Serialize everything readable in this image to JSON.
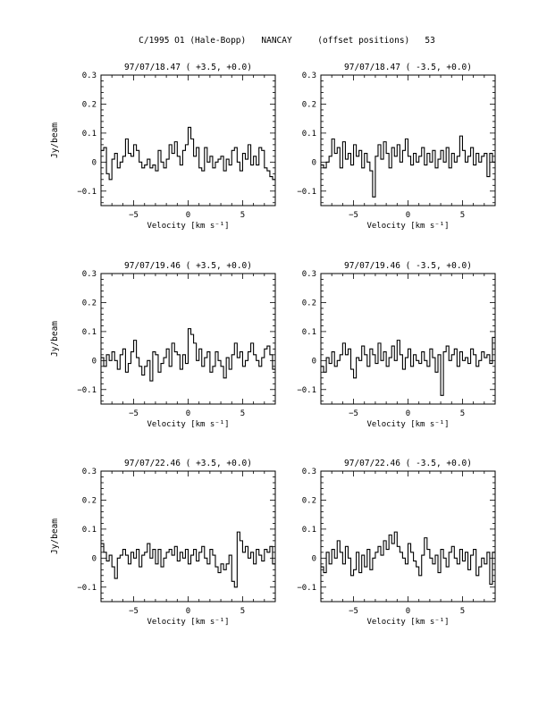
{
  "page_title": "C/1995 O1 (Hale-Bopp)   NANCAY     (offset positions)   53",
  "chart_data": [
    {
      "type": "line",
      "title": "97/07/18.47   ( +3.5, +0.0)",
      "xlabel": "Velocity [km s⁻¹]",
      "ylabel": "Jy/beam",
      "xlim": [
        -8,
        8
      ],
      "ylim": [
        -0.15,
        0.3
      ],
      "xticks": [
        -5,
        0,
        5
      ],
      "yticks": [
        -0.1,
        0,
        0.1,
        0.2,
        0.3
      ],
      "ytick_labels": [
        "−0.1",
        "0",
        "0.1",
        "0.2",
        "0.3"
      ],
      "x": [
        -8,
        -7.75,
        -7.5,
        -7.25,
        -7,
        -6.75,
        -6.5,
        -6.25,
        -6,
        -5.75,
        -5.5,
        -5.25,
        -5,
        -4.75,
        -4.5,
        -4.25,
        -4,
        -3.75,
        -3.5,
        -3.25,
        -3,
        -2.75,
        -2.5,
        -2.25,
        -2,
        -1.75,
        -1.5,
        -1.25,
        -1,
        -0.75,
        -0.5,
        -0.25,
        0,
        0.25,
        0.5,
        0.75,
        1,
        1.25,
        1.5,
        1.75,
        2,
        2.25,
        2.5,
        2.75,
        3,
        3.25,
        3.5,
        3.75,
        4,
        4.25,
        4.5,
        4.75,
        5,
        5.25,
        5.5,
        5.75,
        6,
        6.25,
        6.5,
        6.75,
        7,
        7.25,
        7.5,
        7.75
      ],
      "values": [
        0.04,
        0.05,
        -0.04,
        -0.06,
        0.01,
        0.03,
        -0.02,
        0.0,
        0.02,
        0.08,
        0.03,
        0.02,
        0.06,
        0.04,
        0.0,
        -0.02,
        -0.01,
        0.01,
        -0.02,
        -0.01,
        -0.03,
        0.04,
        0.0,
        -0.02,
        0.01,
        0.06,
        0.03,
        0.07,
        0.02,
        -0.01,
        0.04,
        0.06,
        0.12,
        0.08,
        0.02,
        0.05,
        -0.02,
        -0.03,
        0.05,
        0.0,
        0.02,
        -0.02,
        0.0,
        0.01,
        0.02,
        -0.03,
        0.01,
        -0.01,
        0.04,
        0.05,
        0.0,
        -0.03,
        0.03,
        0.01,
        0.06,
        -0.01,
        0.02,
        -0.01,
        0.05,
        0.04,
        -0.02,
        -0.03,
        -0.05,
        -0.06
      ]
    },
    {
      "type": "line",
      "title": "97/07/18.47   ( -3.5, +0.0)",
      "xlabel": "Velocity [km s⁻¹]",
      "ylabel": "",
      "xlim": [
        -8,
        8
      ],
      "ylim": [
        -0.15,
        0.3
      ],
      "xticks": [
        -5,
        0,
        5
      ],
      "yticks": [
        -0.1,
        0,
        0.1,
        0.2,
        0.3
      ],
      "ytick_labels": [
        "−0.1",
        "0",
        "0.1",
        "0.2",
        "0.3"
      ],
      "x": [
        -8,
        -7.75,
        -7.5,
        -7.25,
        -7,
        -6.75,
        -6.5,
        -6.25,
        -6,
        -5.75,
        -5.5,
        -5.25,
        -5,
        -4.75,
        -4.5,
        -4.25,
        -4,
        -3.75,
        -3.5,
        -3.25,
        -3,
        -2.75,
        -2.5,
        -2.25,
        -2,
        -1.75,
        -1.5,
        -1.25,
        -1,
        -0.75,
        -0.5,
        -0.25,
        0,
        0.25,
        0.5,
        0.75,
        1,
        1.25,
        1.5,
        1.75,
        2,
        2.25,
        2.5,
        2.75,
        3,
        3.25,
        3.5,
        3.75,
        4,
        4.25,
        4.5,
        4.75,
        5,
        5.25,
        5.5,
        5.75,
        6,
        6.25,
        6.5,
        6.75,
        7,
        7.25,
        7.5,
        7.75
      ],
      "values": [
        -0.01,
        -0.02,
        0.0,
        0.02,
        0.08,
        0.03,
        0.05,
        -0.02,
        0.07,
        0.01,
        0.03,
        -0.01,
        0.06,
        0.02,
        0.04,
        -0.02,
        0.03,
        0.0,
        -0.03,
        -0.12,
        0.02,
        0.06,
        0.01,
        0.07,
        0.03,
        -0.02,
        0.05,
        0.02,
        0.06,
        0.0,
        0.04,
        0.08,
        0.02,
        -0.01,
        0.03,
        0.0,
        0.02,
        0.05,
        -0.01,
        0.03,
        0.0,
        0.04,
        -0.02,
        0.01,
        0.04,
        0.0,
        0.05,
        -0.02,
        0.03,
        0.0,
        0.02,
        0.09,
        0.04,
        0.0,
        0.02,
        0.05,
        -0.01,
        0.03,
        0.0,
        0.02,
        0.03,
        -0.05,
        0.03,
        0.0
      ]
    },
    {
      "type": "line",
      "title": "97/07/19.46   ( +3.5, +0.0)",
      "xlabel": "Velocity [km s⁻¹]",
      "ylabel": "Jy/beam",
      "xlim": [
        -8,
        8
      ],
      "ylim": [
        -0.15,
        0.3
      ],
      "xticks": [
        -5,
        0,
        5
      ],
      "yticks": [
        -0.1,
        0,
        0.1,
        0.2,
        0.3
      ],
      "ytick_labels": [
        "−0.1",
        "0",
        "0.1",
        "0.2",
        "0.3"
      ],
      "x": [
        -8,
        -7.75,
        -7.5,
        -7.25,
        -7,
        -6.75,
        -6.5,
        -6.25,
        -6,
        -5.75,
        -5.5,
        -5.25,
        -5,
        -4.75,
        -4.5,
        -4.25,
        -4,
        -3.75,
        -3.5,
        -3.25,
        -3,
        -2.75,
        -2.5,
        -2.25,
        -2,
        -1.75,
        -1.5,
        -1.25,
        -1,
        -0.75,
        -0.5,
        -0.25,
        0,
        0.25,
        0.5,
        0.75,
        1,
        1.25,
        1.5,
        1.75,
        2,
        2.25,
        2.5,
        2.75,
        3,
        3.25,
        3.5,
        3.75,
        4,
        4.25,
        4.5,
        4.75,
        5,
        5.25,
        5.5,
        5.75,
        6,
        6.25,
        6.5,
        6.75,
        7,
        7.25,
        7.5,
        7.75
      ],
      "values": [
        0.01,
        -0.02,
        0.02,
        0.0,
        0.03,
        0.0,
        -0.03,
        0.02,
        0.04,
        -0.04,
        -0.01,
        0.03,
        0.07,
        0.01,
        -0.02,
        -0.05,
        -0.02,
        0.0,
        -0.07,
        0.03,
        0.02,
        -0.04,
        -0.01,
        0.01,
        0.04,
        -0.02,
        0.06,
        0.03,
        0.02,
        -0.03,
        0.02,
        -0.01,
        0.11,
        0.09,
        0.06,
        0.0,
        0.04,
        -0.02,
        0.01,
        0.03,
        -0.04,
        -0.02,
        0.03,
        0.0,
        -0.02,
        -0.06,
        0.01,
        -0.03,
        0.02,
        0.06,
        0.01,
        0.03,
        -0.02,
        0.0,
        0.03,
        0.06,
        0.02,
        0.0,
        -0.02,
        0.01,
        0.04,
        0.05,
        0.02,
        -0.03
      ]
    },
    {
      "type": "line",
      "title": "97/07/19.46   ( -3.5, +0.0)",
      "xlabel": "Velocity [km s⁻¹]",
      "ylabel": "",
      "xlim": [
        -8,
        8
      ],
      "ylim": [
        -0.15,
        0.3
      ],
      "xticks": [
        -5,
        0,
        5
      ],
      "yticks": [
        -0.1,
        0,
        0.1,
        0.2,
        0.3
      ],
      "ytick_labels": [
        "−0.1",
        "0",
        "0.1",
        "0.2",
        "0.3"
      ],
      "x": [
        -8,
        -7.75,
        -7.5,
        -7.25,
        -7,
        -6.75,
        -6.5,
        -6.25,
        -6,
        -5.75,
        -5.5,
        -5.25,
        -5,
        -4.75,
        -4.5,
        -4.25,
        -4,
        -3.75,
        -3.5,
        -3.25,
        -3,
        -2.75,
        -2.5,
        -2.25,
        -2,
        -1.75,
        -1.5,
        -1.25,
        -1,
        -0.75,
        -0.5,
        -0.25,
        0,
        0.25,
        0.5,
        0.75,
        1,
        1.25,
        1.5,
        1.75,
        2,
        2.25,
        2.5,
        2.75,
        3,
        3.25,
        3.5,
        3.75,
        4,
        4.25,
        4.5,
        4.75,
        5,
        5.25,
        5.5,
        5.75,
        6,
        6.25,
        6.5,
        6.75,
        7,
        7.25,
        7.5,
        7.75
      ],
      "values": [
        -0.02,
        -0.04,
        0.01,
        -0.01,
        0.03,
        -0.02,
        0.0,
        0.02,
        0.06,
        0.02,
        0.04,
        -0.03,
        -0.06,
        0.01,
        0.0,
        0.05,
        0.02,
        -0.02,
        0.04,
        0.02,
        -0.01,
        0.06,
        0.0,
        0.03,
        -0.02,
        0.01,
        0.05,
        0.0,
        0.07,
        0.02,
        -0.03,
        0.01,
        0.04,
        -0.02,
        0.02,
        0.0,
        -0.01,
        0.03,
        0.0,
        -0.02,
        0.04,
        0.01,
        -0.04,
        0.02,
        -0.12,
        0.03,
        0.05,
        0.0,
        0.02,
        0.04,
        -0.02,
        0.03,
        0.0,
        0.01,
        -0.01,
        0.04,
        0.02,
        -0.02,
        0.0,
        0.03,
        0.01,
        0.02,
        -0.01,
        0.08
      ]
    },
    {
      "type": "line",
      "title": "97/07/22.46   ( +3.5, +0.0)",
      "xlabel": "Velocity [km s⁻¹]",
      "ylabel": "Jy/beam",
      "xlim": [
        -8,
        8
      ],
      "ylim": [
        -0.15,
        0.3
      ],
      "xticks": [
        -5,
        0,
        5
      ],
      "yticks": [
        -0.1,
        0,
        0.1,
        0.2,
        0.3
      ],
      "ytick_labels": [
        "−0.1",
        "0",
        "0.1",
        "0.2",
        "0.3"
      ],
      "x": [
        -8,
        -7.75,
        -7.5,
        -7.25,
        -7,
        -6.75,
        -6.5,
        -6.25,
        -6,
        -5.75,
        -5.5,
        -5.25,
        -5,
        -4.75,
        -4.5,
        -4.25,
        -4,
        -3.75,
        -3.5,
        -3.25,
        -3,
        -2.75,
        -2.5,
        -2.25,
        -2,
        -1.75,
        -1.5,
        -1.25,
        -1,
        -0.75,
        -0.5,
        -0.25,
        0,
        0.25,
        0.5,
        0.75,
        1,
        1.25,
        1.5,
        1.75,
        2,
        2.25,
        2.5,
        2.75,
        3,
        3.25,
        3.5,
        3.75,
        4,
        4.25,
        4.5,
        4.75,
        5,
        5.25,
        5.5,
        5.75,
        6,
        6.25,
        6.5,
        6.75,
        7,
        7.25,
        7.5,
        7.75
      ],
      "values": [
        0.05,
        0.02,
        -0.01,
        0.01,
        -0.03,
        -0.07,
        0.0,
        0.01,
        0.03,
        0.01,
        -0.02,
        0.02,
        0.0,
        0.03,
        -0.03,
        0.01,
        0.02,
        0.05,
        0.0,
        0.03,
        -0.02,
        0.03,
        -0.03,
        0.0,
        0.02,
        0.03,
        0.01,
        0.04,
        -0.01,
        0.02,
        0.0,
        0.03,
        -0.02,
        0.01,
        0.03,
        -0.01,
        0.02,
        0.04,
        0.0,
        -0.02,
        0.03,
        0.01,
        -0.03,
        -0.05,
        -0.02,
        -0.04,
        -0.02,
        0.01,
        -0.08,
        -0.1,
        0.09,
        0.06,
        0.02,
        0.04,
        0.0,
        0.02,
        -0.02,
        0.03,
        0.01,
        -0.01,
        0.03,
        0.02,
        0.04,
        -0.02
      ]
    },
    {
      "type": "line",
      "title": "97/07/22.46   ( -3.5, +0.0)",
      "xlabel": "Velocity [km s⁻¹]",
      "ylabel": "",
      "xlim": [
        -8,
        8
      ],
      "ylim": [
        -0.15,
        0.3
      ],
      "xticks": [
        -5,
        0,
        5
      ],
      "yticks": [
        -0.1,
        0,
        0.1,
        0.2,
        0.3
      ],
      "ytick_labels": [
        "−0.1",
        "0",
        "0.1",
        "0.2",
        "0.3"
      ],
      "x": [
        -8,
        -7.75,
        -7.5,
        -7.25,
        -7,
        -6.75,
        -6.5,
        -6.25,
        -6,
        -5.75,
        -5.5,
        -5.25,
        -5,
        -4.75,
        -4.5,
        -4.25,
        -4,
        -3.75,
        -3.5,
        -3.25,
        -3,
        -2.75,
        -2.5,
        -2.25,
        -2,
        -1.75,
        -1.5,
        -1.25,
        -1,
        -0.75,
        -0.5,
        -0.25,
        0,
        0.25,
        0.5,
        0.75,
        1,
        1.25,
        1.5,
        1.75,
        2,
        2.25,
        2.5,
        2.75,
        3,
        3.25,
        3.5,
        3.75,
        4,
        4.25,
        4.5,
        4.75,
        5,
        5.25,
        5.5,
        5.75,
        6,
        6.25,
        6.5,
        6.75,
        7,
        7.25,
        7.5,
        7.75
      ],
      "values": [
        -0.03,
        -0.05,
        0.02,
        -0.02,
        0.03,
        0.0,
        0.06,
        0.02,
        -0.02,
        0.04,
        0.0,
        -0.06,
        -0.04,
        0.02,
        -0.05,
        0.01,
        -0.03,
        0.03,
        -0.04,
        0.0,
        0.02,
        0.04,
        0.01,
        0.06,
        0.03,
        0.08,
        0.05,
        0.09,
        0.04,
        0.02,
        0.0,
        -0.02,
        0.05,
        0.02,
        -0.01,
        -0.03,
        -0.06,
        0.01,
        0.07,
        0.03,
        0.0,
        -0.02,
        0.01,
        -0.05,
        0.03,
        0.0,
        -0.03,
        0.02,
        0.04,
        0.0,
        -0.02,
        0.03,
        -0.01,
        0.02,
        -0.04,
        0.01,
        0.03,
        -0.06,
        -0.03,
        0.0,
        -0.02,
        0.02,
        -0.09,
        0.02
      ]
    }
  ]
}
